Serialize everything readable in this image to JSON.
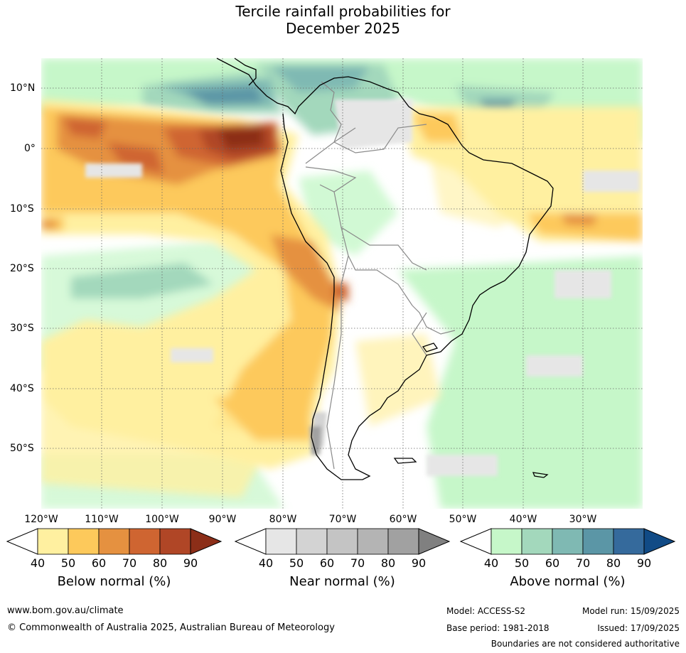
{
  "title": {
    "line1": "Tercile rainfall probabilities for",
    "line2": "December 2025"
  },
  "map": {
    "lon_labels": [
      "120°W",
      "110°W",
      "100°W",
      "90°W",
      "80°W",
      "70°W",
      "60°W",
      "50°W",
      "40°W",
      "30°W"
    ],
    "lat_labels": [
      "10°N",
      "0°",
      "10°S",
      "20°S",
      "30°S",
      "40°S",
      "50°S"
    ]
  },
  "colorbars": [
    {
      "title": "Below normal (%)",
      "ticks": [
        "40",
        "50",
        "60",
        "70",
        "80",
        "90"
      ],
      "colors": [
        "#fff0a0",
        "#fdc95b",
        "#e59140",
        "#cf6531",
        "#b04626",
        "#8c2e18"
      ]
    },
    {
      "title": "Near normal (%)",
      "ticks": [
        "40",
        "50",
        "60",
        "70",
        "80",
        "90"
      ],
      "colors": [
        "#e6e6e6",
        "#d3d3d3",
        "#c4c4c4",
        "#b4b4b4",
        "#a1a1a1",
        "#808080"
      ]
    },
    {
      "title": "Above normal (%)",
      "ticks": [
        "40",
        "50",
        "60",
        "70",
        "80",
        "90"
      ],
      "colors": [
        "#c6f7c9",
        "#a3d8bc",
        "#7fb9b3",
        "#5b96a6",
        "#356a9c",
        "#114b86"
      ]
    }
  ],
  "footer": {
    "website": "www.bom.gov.au/climate",
    "copyright": "© Commonwealth of Australia 2025, Australian Bureau of Meteorology",
    "model": "Model: ACCESS-S2",
    "model_run": "Model run: 15/09/2025",
    "base_period": "Base period: 1981-2018",
    "issued": "Issued: 17/09/2025",
    "disclaimer": "Boundaries are not considered authoritative"
  }
}
